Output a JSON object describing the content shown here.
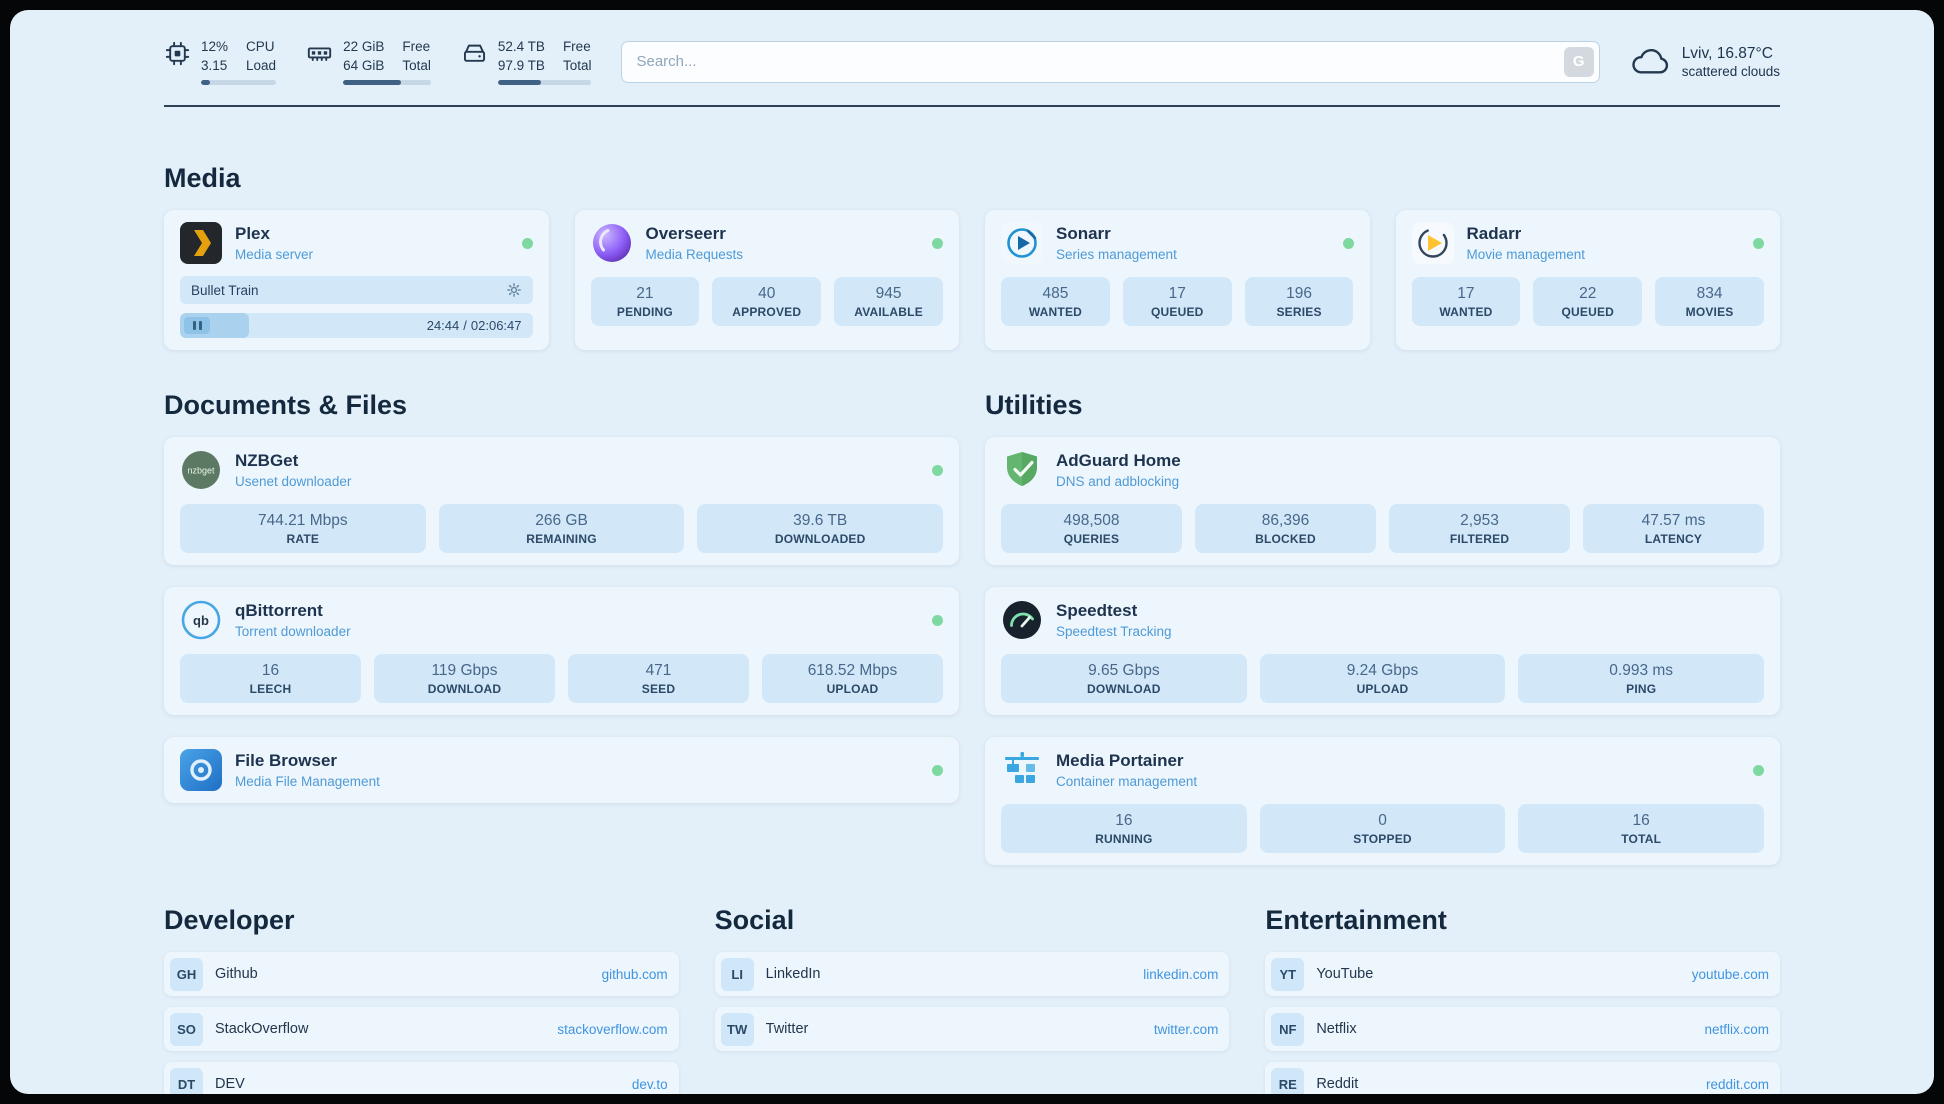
{
  "header": {
    "cpu": {
      "value_top": "12%",
      "value_bottom": "3.15",
      "label_top": "CPU",
      "label_bottom": "Load",
      "percent": 12
    },
    "ram": {
      "value_top": "22 GiB",
      "value_bottom": "64 GiB",
      "label_top": "Free",
      "label_bottom": "Total",
      "percent": 66
    },
    "disk": {
      "value_top": "52.4 TB",
      "value_bottom": "97.9 TB",
      "label_top": "Free",
      "label_bottom": "Total",
      "percent": 46
    },
    "search": {
      "placeholder": "Search...",
      "button_label": "G"
    },
    "weather": {
      "location": "Lviv, 16.87°C",
      "condition": "scattered clouds"
    }
  },
  "sections": {
    "media": {
      "title": "Media",
      "plex": {
        "name": "Plex",
        "subtitle": "Media server",
        "now_playing": "Bullet Train",
        "elapsed": "24:44",
        "separator": "/",
        "duration": "02:06:47",
        "progress_percent": 19.5
      },
      "overseerr": {
        "name": "Overseerr",
        "subtitle": "Media Requests",
        "stats": [
          {
            "value": "21",
            "label": "PENDING"
          },
          {
            "value": "40",
            "label": "APPROVED"
          },
          {
            "value": "945",
            "label": "AVAILABLE"
          }
        ]
      },
      "sonarr": {
        "name": "Sonarr",
        "subtitle": "Series management",
        "stats": [
          {
            "value": "485",
            "label": "WANTED"
          },
          {
            "value": "17",
            "label": "QUEUED"
          },
          {
            "value": "196",
            "label": "SERIES"
          }
        ]
      },
      "radarr": {
        "name": "Radarr",
        "subtitle": "Movie management",
        "stats": [
          {
            "value": "17",
            "label": "WANTED"
          },
          {
            "value": "22",
            "label": "QUEUED"
          },
          {
            "value": "834",
            "label": "MOVIES"
          }
        ]
      }
    },
    "documents": {
      "title": "Documents & Files",
      "nzbget": {
        "name": "NZBGet",
        "subtitle": "Usenet downloader",
        "icon_text": "nzbget",
        "stats": [
          {
            "value": "744.21 Mbps",
            "label": "RATE"
          },
          {
            "value": "266 GB",
            "label": "REMAINING"
          },
          {
            "value": "39.6 TB",
            "label": "DOWNLOADED"
          }
        ]
      },
      "qbittorrent": {
        "name": "qBittorrent",
        "subtitle": "Torrent downloader",
        "icon_text": "qb",
        "stats": [
          {
            "value": "16",
            "label": "LEECH"
          },
          {
            "value": "119 Gbps",
            "label": "DOWNLOAD"
          },
          {
            "value": "471",
            "label": "SEED"
          },
          {
            "value": "618.52 Mbps",
            "label": "UPLOAD"
          }
        ]
      },
      "filebrowser": {
        "name": "File Browser",
        "subtitle": "Media File Management"
      }
    },
    "utilities": {
      "title": "Utilities",
      "adguard": {
        "name": "AdGuard Home",
        "subtitle": "DNS and adblocking",
        "stats": [
          {
            "value": "498,508",
            "label": "QUERIES"
          },
          {
            "value": "86,396",
            "label": "BLOCKED"
          },
          {
            "value": "2,953",
            "label": "FILTERED"
          },
          {
            "value": "47.57 ms",
            "label": "LATENCY"
          }
        ]
      },
      "speedtest": {
        "name": "Speedtest",
        "subtitle": "Speedtest Tracking",
        "stats": [
          {
            "value": "9.65 Gbps",
            "label": "DOWNLOAD"
          },
          {
            "value": "9.24 Gbps",
            "label": "UPLOAD"
          },
          {
            "value": "0.993 ms",
            "label": "PING"
          }
        ]
      },
      "portainer": {
        "name": "Media Portainer",
        "subtitle": "Container management",
        "stats": [
          {
            "value": "16",
            "label": "RUNNING"
          },
          {
            "value": "0",
            "label": "STOPPED"
          },
          {
            "value": "16",
            "label": "TOTAL"
          }
        ]
      }
    },
    "bookmarks": [
      {
        "title": "Developer",
        "items": [
          {
            "abbr": "GH",
            "name": "Github",
            "url": "github.com"
          },
          {
            "abbr": "SO",
            "name": "StackOverflow",
            "url": "stackoverflow.com"
          },
          {
            "abbr": "DT",
            "name": "DEV",
            "url": "dev.to"
          }
        ]
      },
      {
        "title": "Social",
        "items": [
          {
            "abbr": "LI",
            "name": "LinkedIn",
            "url": "linkedin.com"
          },
          {
            "abbr": "TW",
            "name": "Twitter",
            "url": "twitter.com"
          }
        ]
      },
      {
        "title": "Entertainment",
        "items": [
          {
            "abbr": "YT",
            "name": "YouTube",
            "url": "youtube.com"
          },
          {
            "abbr": "NF",
            "name": "Netflix",
            "url": "netflix.com"
          },
          {
            "abbr": "RE",
            "name": "Reddit",
            "url": "reddit.com"
          }
        ]
      }
    ]
  },
  "colors": {
    "page_bg": "#e3f0fa",
    "card_bg": "#eef6fd",
    "stat_bg": "#d2e8f8",
    "status_online": "#7ed9a0",
    "link_blue": "#3f94e0",
    "subtitle_blue": "#4e9ad6",
    "text_navy": "#1d334e"
  }
}
